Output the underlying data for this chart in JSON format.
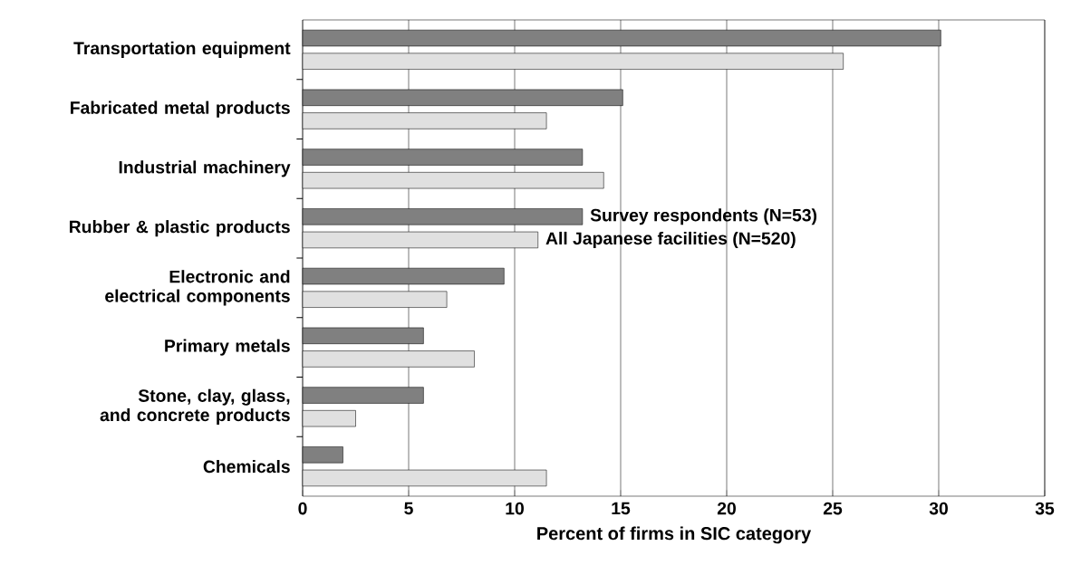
{
  "chart_data": {
    "type": "bar",
    "orientation": "horizontal",
    "xlabel": "Percent of firms in SIC category",
    "categories": [
      "Transportation equipment",
      "Fabricated metal products",
      "Industrial machinery",
      "Rubber & plastic products",
      "Electronic and electrical components",
      "Primary metals",
      "Stone, clay, glass, and concrete products",
      "Chemicals"
    ],
    "series": [
      {
        "name": "Survey respondents (N=53)",
        "color": "#808080",
        "values": [
          30.1,
          15.1,
          13.2,
          13.2,
          9.5,
          5.7,
          5.7,
          1.9
        ]
      },
      {
        "name": "All Japanese facilities (N=520)",
        "color": "#e0e0e0",
        "values": [
          25.5,
          11.5,
          14.2,
          11.1,
          6.8,
          8.1,
          2.5,
          11.5
        ]
      }
    ],
    "xlim": [
      0,
      35
    ],
    "xticks": [
      0,
      5,
      10,
      15,
      20,
      25,
      30,
      35
    ],
    "grid": "x",
    "legend": false
  }
}
